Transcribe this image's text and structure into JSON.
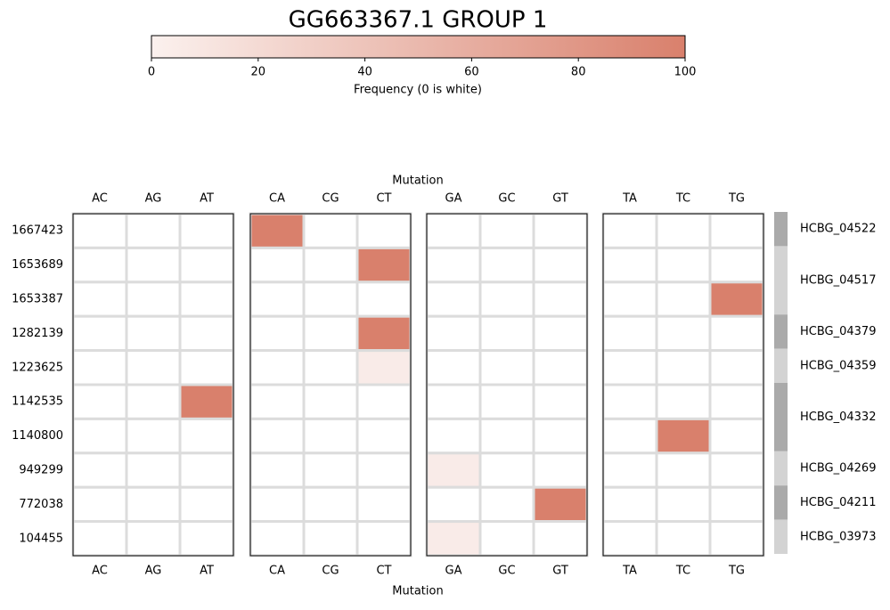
{
  "chart_data": {
    "type": "heatmap",
    "title": "GG663367.1 GROUP 1",
    "x_label": "Mutation",
    "x_categories": [
      [
        "AC",
        "AG",
        "AT"
      ],
      [
        "CA",
        "CG",
        "CT"
      ],
      [
        "GA",
        "GC",
        "GT"
      ],
      [
        "TA",
        "TC",
        "TG"
      ]
    ],
    "y_categories": [
      "1667423",
      "1653689",
      "1653387",
      "1282139",
      "1223625",
      "1142535",
      "1140800",
      "949299",
      "772038",
      "104455"
    ],
    "values": [
      [
        [
          0,
          0,
          0
        ],
        [
          100,
          0,
          0
        ],
        [
          0,
          0,
          0
        ],
        [
          0,
          0,
          0
        ]
      ],
      [
        [
          0,
          0,
          0
        ],
        [
          0,
          0,
          100
        ],
        [
          0,
          0,
          0
        ],
        [
          0,
          0,
          0
        ]
      ],
      [
        [
          0,
          0,
          0
        ],
        [
          0,
          0,
          0
        ],
        [
          0,
          0,
          0
        ],
        [
          0,
          0,
          100
        ]
      ],
      [
        [
          0,
          0,
          0
        ],
        [
          0,
          0,
          100
        ],
        [
          0,
          0,
          0
        ],
        [
          0,
          0,
          0
        ]
      ],
      [
        [
          0,
          0,
          0
        ],
        [
          0,
          0,
          5
        ],
        [
          0,
          0,
          0
        ],
        [
          0,
          0,
          0
        ]
      ],
      [
        [
          0,
          0,
          100
        ],
        [
          0,
          0,
          0
        ],
        [
          0,
          0,
          0
        ],
        [
          0,
          0,
          0
        ]
      ],
      [
        [
          0,
          0,
          0
        ],
        [
          0,
          0,
          0
        ],
        [
          0,
          0,
          0
        ],
        [
          0,
          100,
          0
        ]
      ],
      [
        [
          0,
          0,
          0
        ],
        [
          0,
          0,
          0
        ],
        [
          5,
          0,
          0
        ],
        [
          0,
          0,
          0
        ]
      ],
      [
        [
          0,
          0,
          0
        ],
        [
          0,
          0,
          0
        ],
        [
          0,
          0,
          100
        ],
        [
          0,
          0,
          0
        ]
      ],
      [
        [
          0,
          0,
          0
        ],
        [
          0,
          0,
          0
        ],
        [
          5,
          0,
          0
        ],
        [
          0,
          0,
          0
        ]
      ]
    ],
    "colorbar": {
      "label": "Frequency (0 is white)",
      "lim": [
        0,
        100
      ],
      "ticks": [
        0,
        20,
        40,
        60,
        80,
        100
      ],
      "colors": [
        "#fbf1ee",
        "#d9806c"
      ],
      "zero_color": "#ffffff"
    },
    "row_groups": [
      {
        "label": "HCBG_04522",
        "rows": 1,
        "color": "#aaaaaa"
      },
      {
        "label": "HCBG_04517",
        "rows": 2,
        "color": "#d3d3d3"
      },
      {
        "label": "HCBG_04379",
        "rows": 1,
        "color": "#aaaaaa"
      },
      {
        "label": "HCBG_04359",
        "rows": 1,
        "color": "#d3d3d3"
      },
      {
        "label": "HCBG_04332",
        "rows": 2,
        "color": "#aaaaaa"
      },
      {
        "label": "HCBG_04269",
        "rows": 1,
        "color": "#d3d3d3"
      },
      {
        "label": "HCBG_04211",
        "rows": 1,
        "color": "#aaaaaa"
      },
      {
        "label": "HCBG_03973",
        "rows": 1,
        "color": "#d3d3d3"
      }
    ]
  }
}
